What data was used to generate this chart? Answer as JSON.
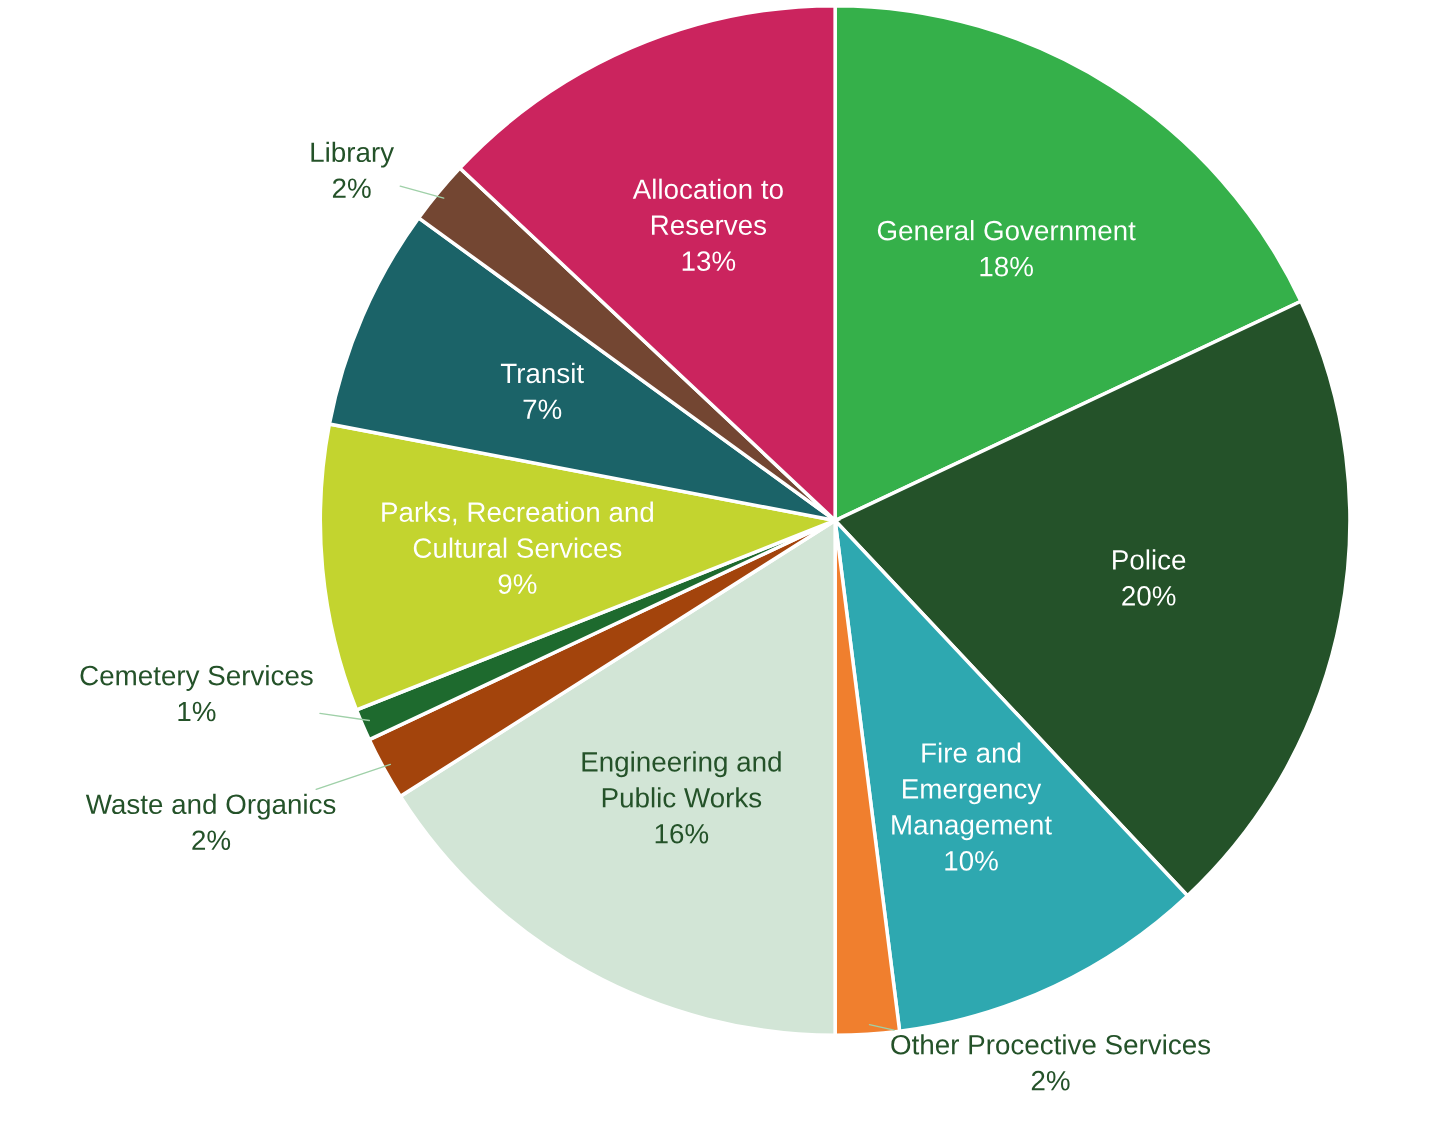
{
  "chart_data": {
    "type": "pie",
    "categories": [
      "General Government",
      "Police",
      "Fire and\nEmergency\nManagement",
      "Other Procective Services",
      "Engineering and\nPublic Works",
      "Waste and Organics",
      "Cemetery Services",
      "Parks, Recreation and\nCultural Services",
      "Transit",
      "Library",
      "Allocation to\nReserves"
    ],
    "values": [
      18,
      20,
      10,
      2,
      16,
      2,
      1,
      9,
      7,
      2,
      13
    ],
    "value_labels": [
      "18%",
      "20%",
      "10%",
      "2%",
      "16%",
      "2%",
      "1%",
      "9%",
      "7%",
      "2%",
      "13%"
    ],
    "colors": [
      "#35b04a",
      "#245229",
      "#2ea8b0",
      "#f07f2e",
      "#d2e5d6",
      "#a3440c",
      "#1e6a2e",
      "#c3d42f",
      "#1b6368",
      "#734632",
      "#cb245e"
    ],
    "legend": false
  }
}
